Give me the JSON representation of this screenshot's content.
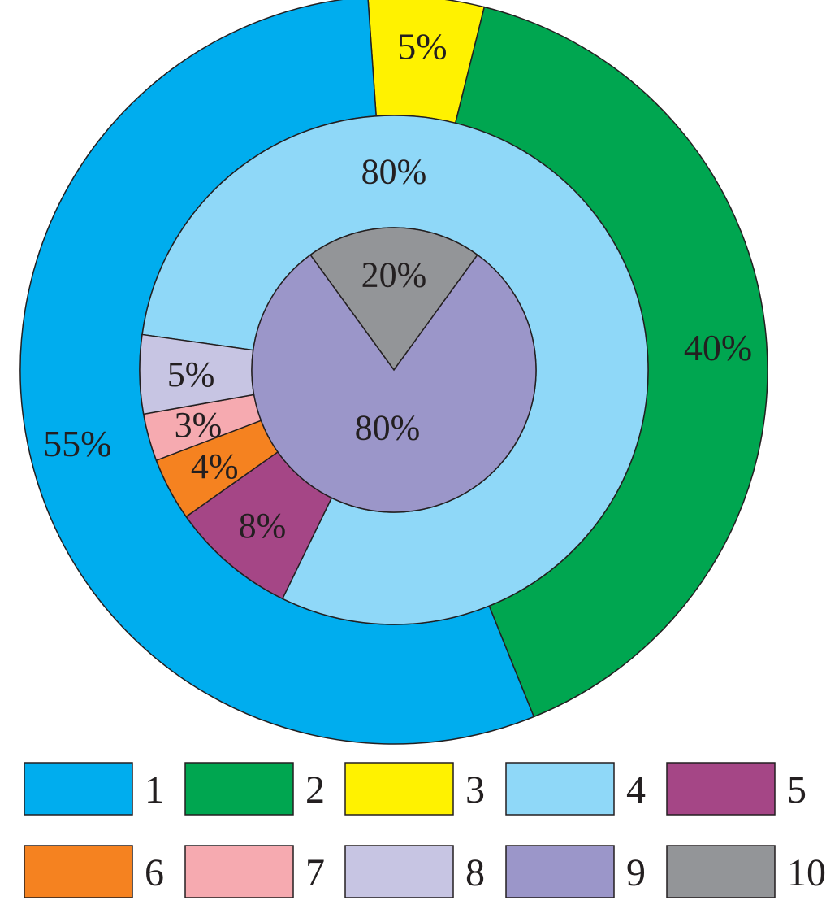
{
  "chart_data": {
    "type": "pie",
    "subtype": "nested-donut",
    "title": "",
    "rings": [
      {
        "ring": "outer",
        "slices": [
          {
            "category": "1",
            "value": 55,
            "label": "55%",
            "color": "#00adee"
          },
          {
            "category": "2",
            "value": 40,
            "label": "40%",
            "color": "#00a650"
          },
          {
            "category": "3",
            "value": 5,
            "label": "5%",
            "color": "#fff200"
          }
        ]
      },
      {
        "ring": "middle",
        "slices": [
          {
            "category": "4",
            "value": 80,
            "label": "80%",
            "color": "#8fd8f8"
          },
          {
            "category": "5",
            "value": 8,
            "label": "8%",
            "color": "#a54686"
          },
          {
            "category": "6",
            "value": 4,
            "label": "4%",
            "color": "#f58220"
          },
          {
            "category": "7",
            "value": 3,
            "label": "3%",
            "color": "#f6aab0"
          },
          {
            "category": "8",
            "value": 5,
            "label": "5%",
            "color": "#c7c5e3"
          }
        ]
      },
      {
        "ring": "inner",
        "slices": [
          {
            "category": "9",
            "value": 80,
            "label": "80%",
            "color": "#9b96c9"
          },
          {
            "category": "10",
            "value": 20,
            "label": "20%",
            "color": "#939598"
          }
        ]
      }
    ],
    "legend": {
      "placement": "bottom",
      "items": [
        {
          "label": "1",
          "color": "#00adee"
        },
        {
          "label": "2",
          "color": "#00a650"
        },
        {
          "label": "3",
          "color": "#fff200"
        },
        {
          "label": "4",
          "color": "#8fd8f8"
        },
        {
          "label": "5",
          "color": "#a54686"
        },
        {
          "label": "6",
          "color": "#f58220"
        },
        {
          "label": "7",
          "color": "#f6aab0"
        },
        {
          "label": "8",
          "color": "#c7c5e3"
        },
        {
          "label": "9",
          "color": "#9b96c9"
        },
        {
          "label": "10",
          "color": "#939598"
        }
      ]
    }
  }
}
